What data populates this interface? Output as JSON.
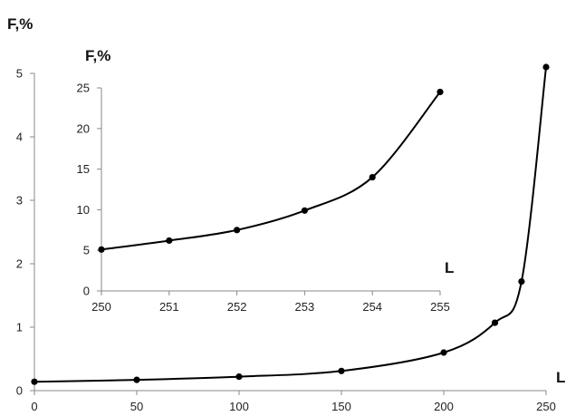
{
  "chart_data": [
    {
      "id": "main",
      "type": "line",
      "xlabel": "L",
      "ylabel": "F,%",
      "xlim": [
        0,
        250
      ],
      "ylim": [
        0,
        5
      ],
      "x_ticks": [
        0,
        50,
        100,
        150,
        200,
        250
      ],
      "y_ticks": [
        0,
        1,
        2,
        3,
        4,
        5
      ],
      "grid": false,
      "series": [
        {
          "x": [
            0,
            50,
            100,
            150,
            200,
            225,
            238,
            250
          ],
          "y": [
            0.14,
            0.17,
            0.22,
            0.31,
            0.6,
            1.07,
            1.72,
            5.1
          ]
        }
      ]
    },
    {
      "id": "inset",
      "type": "line",
      "xlabel": "L",
      "ylabel": "F,%",
      "xlim": [
        250,
        255
      ],
      "ylim": [
        0,
        25
      ],
      "x_ticks": [
        250,
        251,
        252,
        253,
        254,
        255
      ],
      "y_ticks": [
        0,
        5,
        10,
        15,
        20,
        25
      ],
      "grid": false,
      "series": [
        {
          "x": [
            250,
            251,
            252,
            253,
            254,
            255
          ],
          "y": [
            5.1,
            6.2,
            7.5,
            9.9,
            14.0,
            24.5
          ]
        }
      ]
    }
  ]
}
